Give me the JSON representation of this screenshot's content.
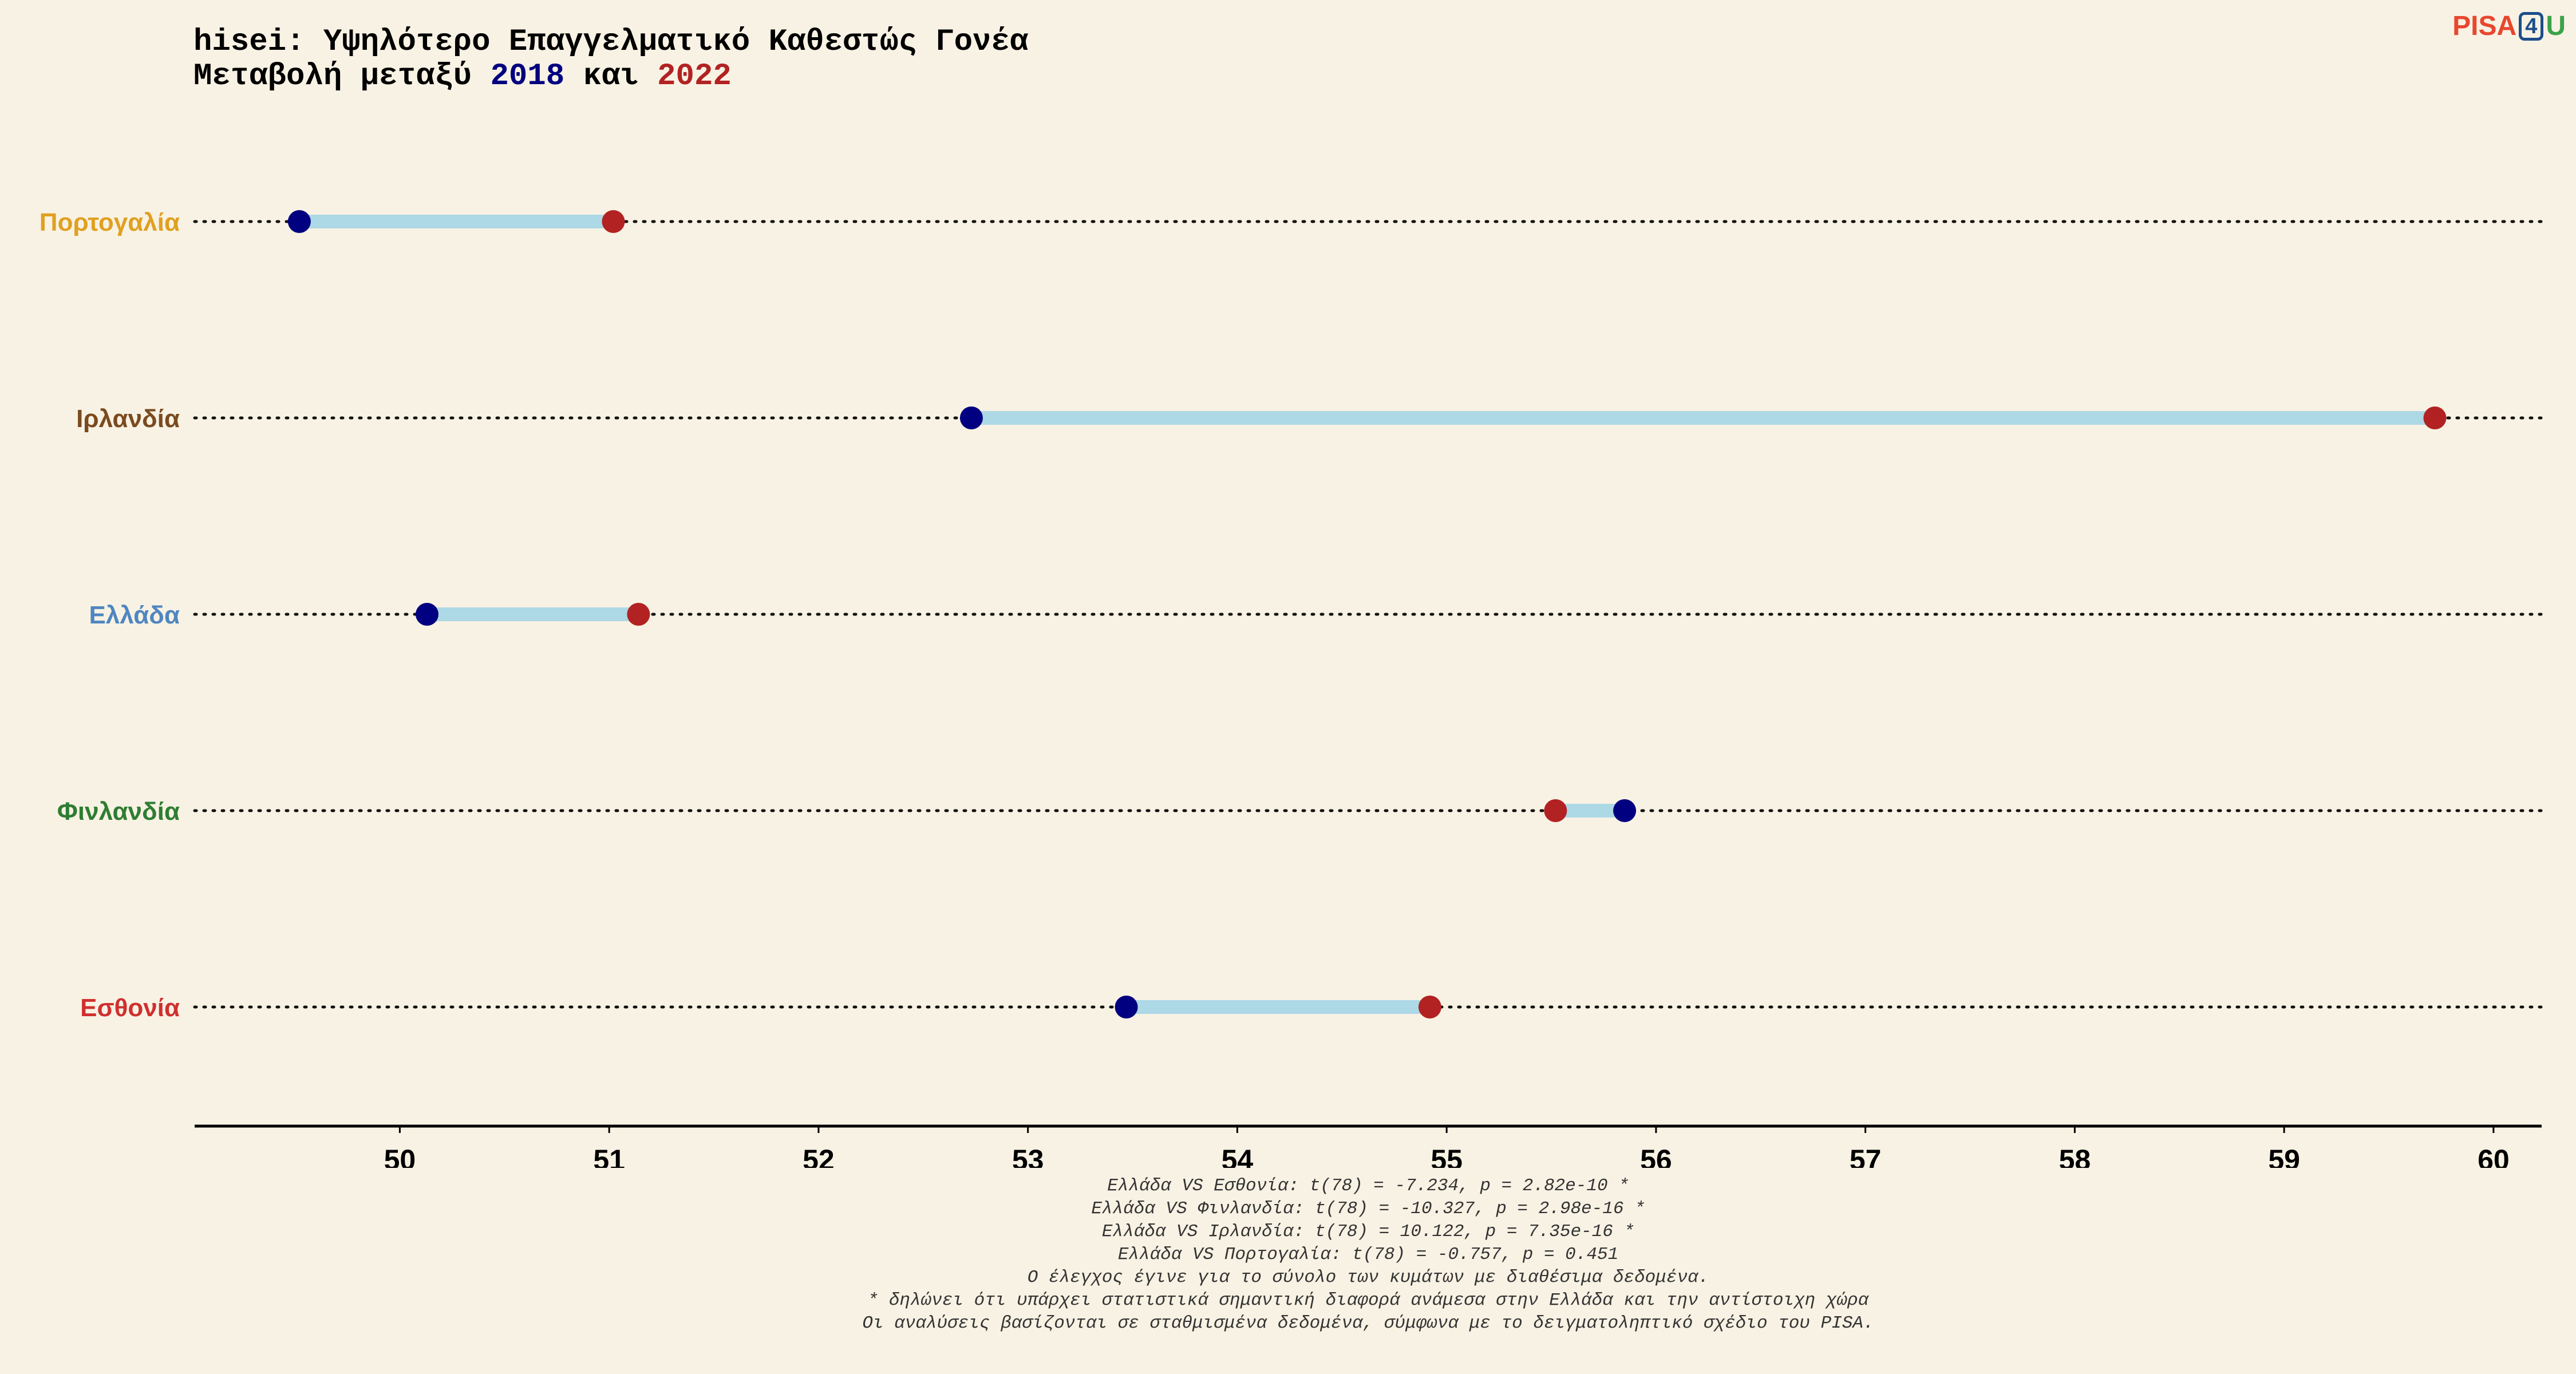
{
  "title": {
    "line1": "hisei: Υψηλότερο Επαγγελματικό Καθεστώς Γονέα",
    "line2_prefix": "Μεταβολή μεταξύ ",
    "line2_year1": "2018",
    "line2_middle": " και ",
    "line2_year2": "2022"
  },
  "logo": {
    "pisa": "PISA",
    "four": "4",
    "u": "U"
  },
  "colors": {
    "y2018": "#000080",
    "y2022": "#b22222",
    "segment": "#add8e6",
    "background": "#f8f2e4"
  },
  "chart_data": {
    "type": "dumbbell",
    "xlim": [
      49.02,
      60.23
    ],
    "xticks": [
      "50",
      "51",
      "52",
      "53",
      "54",
      "55",
      "56",
      "57",
      "58",
      "59",
      "60"
    ],
    "series": [
      {
        "name": "2018",
        "color": "#000080"
      },
      {
        "name": "2022",
        "color": "#b22222"
      }
    ],
    "rows": [
      {
        "country": "Πορτογαλία",
        "label_color": "#e0a020",
        "v2018": 49.52,
        "v2022": 51.02
      },
      {
        "country": "Ιρλανδία",
        "label_color": "#7a4a1e",
        "v2018": 52.73,
        "v2022": 59.72
      },
      {
        "country": "Ελλάδα",
        "label_color": "#4f86c0",
        "v2018": 50.13,
        "v2022": 51.14
      },
      {
        "country": "Φινλανδία",
        "label_color": "#2e7d32",
        "v2018": 55.85,
        "v2022": 55.52
      },
      {
        "country": "Εσθονία",
        "label_color": "#d03030",
        "v2018": 53.47,
        "v2022": 54.92
      }
    ]
  },
  "notes": [
    "Ελλάδα VS Εσθονία: t(78) = -7.234, p = 2.82e-10 *",
    "Ελλάδα VS Φινλανδία: t(78) = -10.327, p = 2.98e-16 *",
    "Ελλάδα VS Ιρλανδία: t(78) = 10.122, p = 7.35e-16 *",
    "Ελλάδα VS Πορτογαλία: t(78) = -0.757, p = 0.451",
    "Ο έλεγχος έγινε για το σύνολο των κυμάτων με διαθέσιμα δεδομένα.",
    "* δηλώνει ότι υπάρχει στατιστικά σημαντική διαφορά ανάμεσα στην Ελλάδα και την αντίστοιχη χώρα",
    "Οι αναλύσεις βασίζονται σε σταθμισμένα δεδομένα, σύμφωνα με το δειγματοληπτικό σχέδιο του PISA."
  ]
}
